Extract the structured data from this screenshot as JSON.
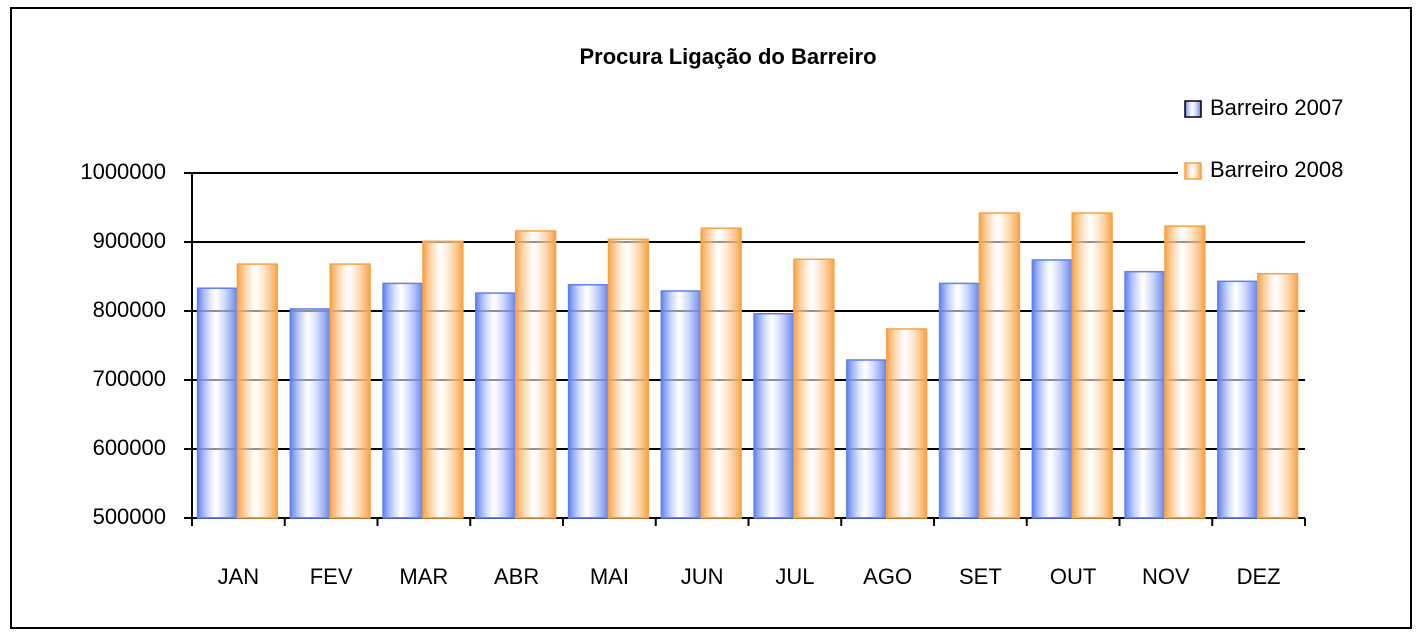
{
  "chart_data": {
    "type": "bar",
    "title": "Procura Ligação do Barreiro",
    "categories": [
      "JAN",
      "FEV",
      "MAR",
      "ABR",
      "MAI",
      "JUN",
      "JUL",
      "AGO",
      "SET",
      "OUT",
      "NOV",
      "DEZ"
    ],
    "series": [
      {
        "name": "Barreiro 2007",
        "color": "#5f80ee",
        "values": [
          833000,
          803000,
          840000,
          826000,
          838000,
          829000,
          796000,
          729000,
          840000,
          874000,
          857000,
          843000
        ]
      },
      {
        "name": "Barreiro 2008",
        "color": "#f8a244",
        "values": [
          868000,
          868000,
          901000,
          916000,
          904000,
          920000,
          875000,
          774000,
          942000,
          942000,
          923000,
          854000
        ]
      }
    ],
    "ylim": [
      500000,
      1000000
    ],
    "yticks": [
      500000,
      600000,
      700000,
      800000,
      900000,
      1000000
    ],
    "grid": true,
    "legend": "top-right"
  }
}
